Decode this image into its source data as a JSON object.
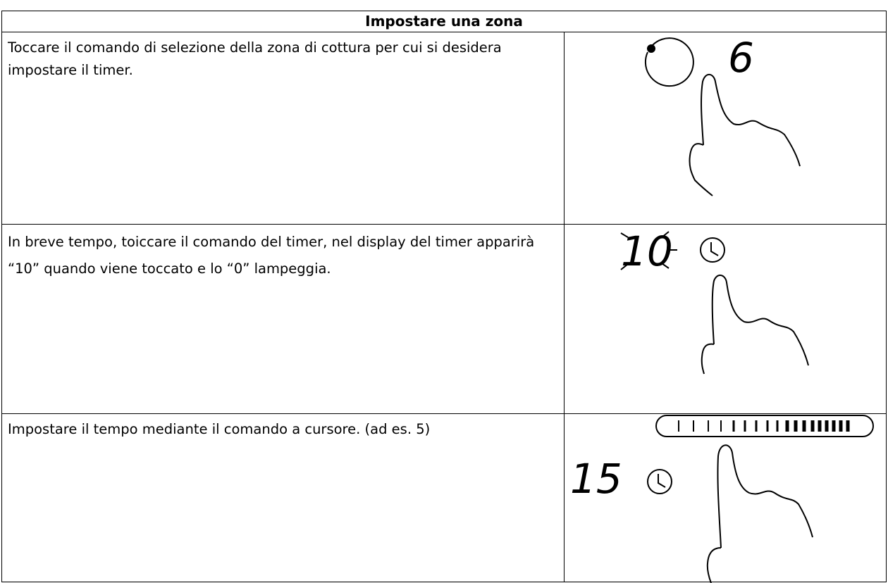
{
  "header": {
    "title": "Impostare una zona"
  },
  "rows": [
    {
      "text": "Toccare il comando di selezione della zona di cottura per cui si desidera impostare il timer.",
      "display": "6"
    },
    {
      "text": "In breve tempo, toiccare il comando del timer, nel display del timer apparirà “10” quando viene toccato e lo “0” lampeggia.",
      "display": "10"
    },
    {
      "text": "Impostare il tempo mediante il comando a cursore. (ad es. 5)",
      "display": "15"
    }
  ]
}
